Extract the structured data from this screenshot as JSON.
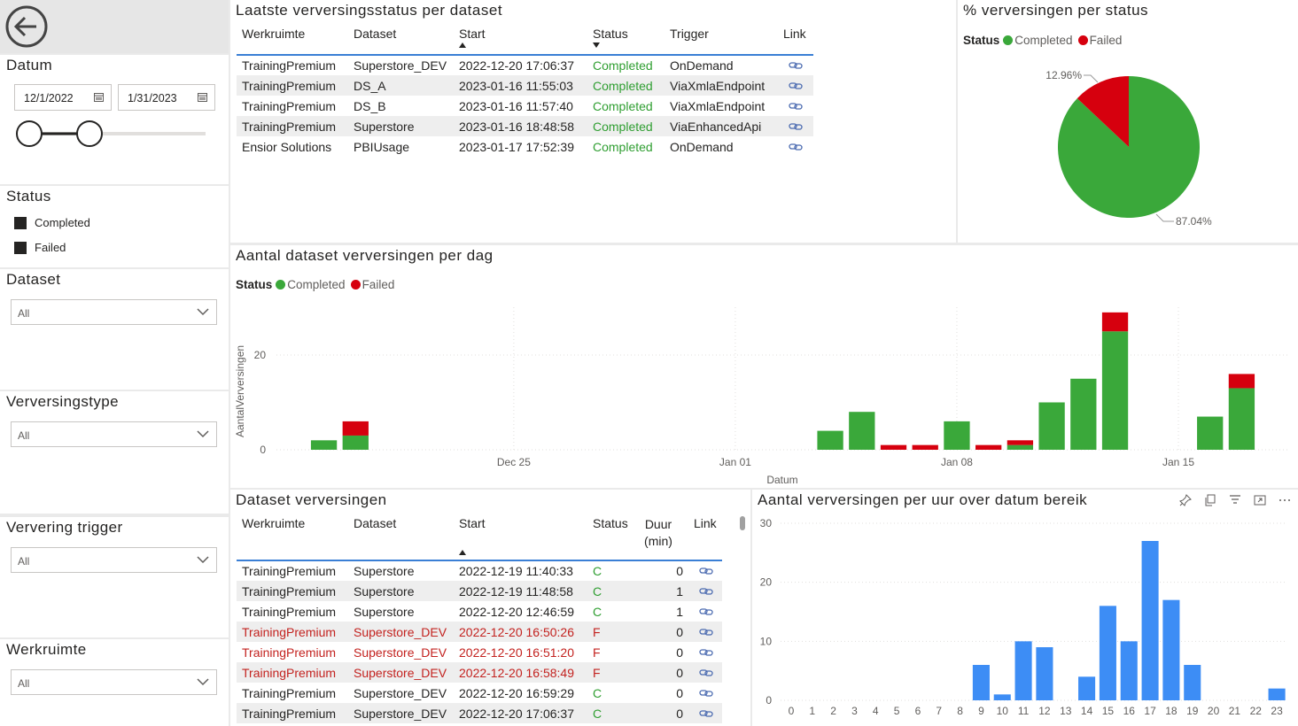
{
  "nav": {
    "back_icon": "back-arrow-icon"
  },
  "slicers": {
    "datum": {
      "title": "Datum",
      "from": "12/1/2022",
      "to": "1/31/2023"
    },
    "status": {
      "title": "Status",
      "items": [
        "Completed",
        "Failed"
      ]
    },
    "dataset": {
      "title": "Dataset",
      "value": "All"
    },
    "type": {
      "title": "Verversingstype",
      "value": "All"
    },
    "trigger": {
      "title": "Ververing trigger",
      "value": "All"
    },
    "workspace": {
      "title": "Werkruimte",
      "value": "All"
    }
  },
  "latest": {
    "title": "Laatste verversingsstatus per dataset",
    "headers": [
      "Werkruimte",
      "Dataset",
      "Start",
      "Status",
      "Trigger",
      "Link"
    ],
    "rows": [
      [
        "TrainingPremium",
        "Superstore_DEV",
        "2022-12-20 17:06:37",
        "Completed",
        "OnDemand"
      ],
      [
        "TrainingPremium",
        "DS_A",
        "2023-01-16 11:55:03",
        "Completed",
        "ViaXmlaEndpoint"
      ],
      [
        "TrainingPremium",
        "DS_B",
        "2023-01-16 11:57:40",
        "Completed",
        "ViaXmlaEndpoint"
      ],
      [
        "TrainingPremium",
        "Superstore",
        "2023-01-16 18:48:58",
        "Completed",
        "ViaEnhancedApi"
      ],
      [
        "Ensior Solutions",
        "PBIUsage",
        "2023-01-17 17:52:39",
        "Completed",
        "OnDemand"
      ]
    ]
  },
  "pie": {
    "title": "% verversingen per status",
    "legend_title": "Status",
    "labels": [
      "12.96%",
      "87.04%"
    ]
  },
  "daily": {
    "title": "Aantal dataset verversingen per dag",
    "legend_title": "Status",
    "xlabel": "Datum",
    "ylabel": "AantalVerversingen"
  },
  "refreshes": {
    "title": "Dataset verversingen",
    "headers": [
      "Werkruimte",
      "Dataset",
      "Start",
      "Status",
      "Duur (min)",
      "Link"
    ],
    "rows": [
      [
        "TrainingPremium",
        "Superstore",
        "2022-12-19 11:40:33",
        "C",
        "0"
      ],
      [
        "TrainingPremium",
        "Superstore",
        "2022-12-19 11:48:58",
        "C",
        "1"
      ],
      [
        "TrainingPremium",
        "Superstore",
        "2022-12-20 12:46:59",
        "C",
        "1"
      ],
      [
        "TrainingPremium",
        "Superstore_DEV",
        "2022-12-20 16:50:26",
        "F",
        "0"
      ],
      [
        "TrainingPremium",
        "Superstore_DEV",
        "2022-12-20 16:51:20",
        "F",
        "0"
      ],
      [
        "TrainingPremium",
        "Superstore_DEV",
        "2022-12-20 16:58:49",
        "F",
        "0"
      ],
      [
        "TrainingPremium",
        "Superstore_DEV",
        "2022-12-20 16:59:29",
        "C",
        "0"
      ],
      [
        "TrainingPremium",
        "Superstore_DEV",
        "2022-12-20 17:06:37",
        "C",
        "0"
      ]
    ]
  },
  "hourly": {
    "title": "Aantal verversingen per uur over datum bereik"
  },
  "colors": {
    "completed": "#3aa83a",
    "failed": "#d6000e",
    "hour_bar": "#3d8df5"
  },
  "chart_data": [
    {
      "type": "pie",
      "title": "% verversingen per status",
      "series": [
        {
          "name": "Completed",
          "value": 87.04
        },
        {
          "name": "Failed",
          "value": 12.96
        }
      ],
      "legend": "top-left"
    },
    {
      "type": "bar",
      "title": "Aantal dataset verversingen per dag",
      "xlabel": "Datum",
      "ylabel": "AantalVerversingen",
      "x_ticks": [
        "Dec 25",
        "Jan 01",
        "Jan 08",
        "Jan 15"
      ],
      "y_ticks": [
        0,
        20
      ],
      "ylim": [
        0,
        30
      ],
      "categories": [
        "2022-12-19",
        "2022-12-20",
        "2023-01-04",
        "2023-01-05",
        "2023-01-06",
        "2023-01-07",
        "2023-01-08",
        "2023-01-09",
        "2023-01-10",
        "2023-01-11",
        "2023-01-12",
        "2023-01-13",
        "2023-01-14",
        "2023-01-16",
        "2023-01-17"
      ],
      "series": [
        {
          "name": "Completed",
          "values": [
            2,
            3,
            4,
            8,
            0,
            0,
            6,
            0,
            1,
            10,
            15,
            25,
            0,
            7,
            13
          ]
        },
        {
          "name": "Failed",
          "values": [
            0,
            3,
            0,
            0,
            1,
            1,
            0,
            1,
            1,
            0,
            0,
            4,
            0,
            0,
            3
          ]
        }
      ],
      "stacked": true,
      "legend": "top-left"
    },
    {
      "type": "bar",
      "title": "Aantal verversingen per uur over datum bereik",
      "categories": [
        "0",
        "1",
        "2",
        "3",
        "4",
        "5",
        "6",
        "7",
        "8",
        "9",
        "10",
        "11",
        "12",
        "13",
        "14",
        "15",
        "16",
        "17",
        "18",
        "19",
        "20",
        "21",
        "22",
        "23"
      ],
      "values": [
        0,
        0,
        0,
        0,
        0,
        0,
        0,
        0,
        0,
        6,
        1,
        10,
        9,
        0,
        4,
        16,
        10,
        27,
        17,
        6,
        0,
        0,
        0,
        2
      ],
      "y_ticks": [
        0,
        10,
        20,
        30
      ],
      "ylim": [
        0,
        30
      ]
    }
  ]
}
